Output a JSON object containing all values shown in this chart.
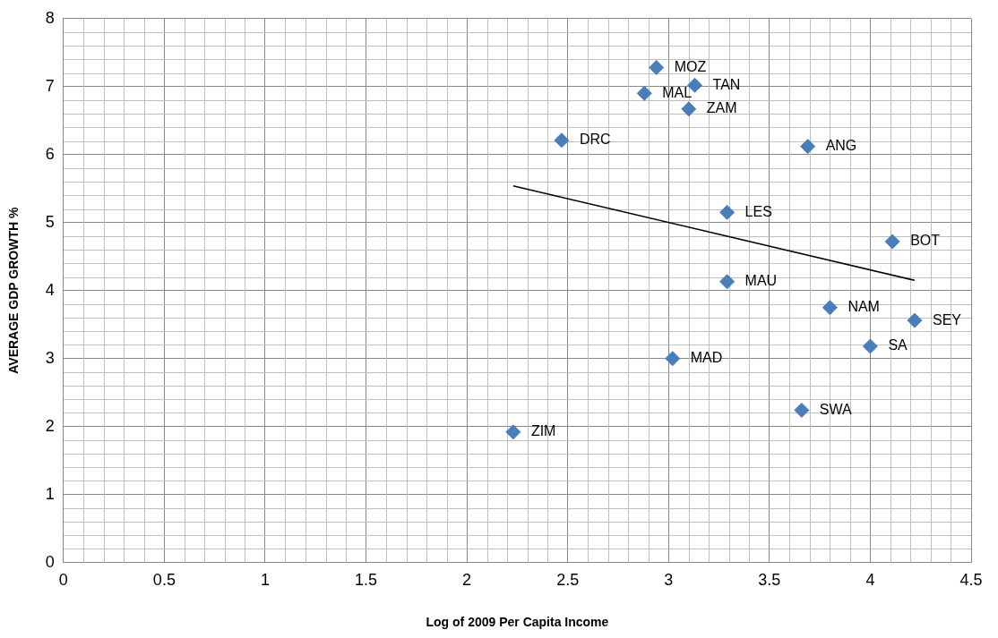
{
  "chart_data": {
    "type": "scatter",
    "xlabel": "Log of 2009 Per Capita Income",
    "ylabel": "AVERAGE GDP GROWTH %",
    "xlim": [
      0,
      4.5
    ],
    "xticks": [
      0,
      0.5,
      1,
      1.5,
      2,
      2.5,
      3,
      3.5,
      4,
      4.5
    ],
    "ylim": [
      0,
      8
    ],
    "yticks": [
      0,
      1,
      2,
      3,
      4,
      5,
      6,
      7,
      8
    ],
    "grid": true,
    "legend": false,
    "marker": "diamond",
    "series": [
      {
        "color": "#4a7ebb",
        "x": [
          2.94,
          3.13,
          2.88,
          3.1,
          2.47,
          3.69,
          3.29,
          4.11,
          3.29,
          3.8,
          4.22,
          4.0,
          3.02,
          3.66,
          2.23
        ],
        "values": [
          7.28,
          7.02,
          6.9,
          6.67,
          6.21,
          6.12,
          5.15,
          4.72,
          4.13,
          3.75,
          3.56,
          3.18,
          3.0,
          2.24,
          1.92
        ]
      },
      {
        "type": "line",
        "color": "#000000",
        "marker": "none",
        "x": [
          2.23,
          4.22
        ],
        "values": [
          5.54,
          4.15
        ]
      }
    ],
    "annotations": [
      {
        "text": "MOZ",
        "x": 2.94,
        "y": 7.28
      },
      {
        "text": "TAN",
        "x": 3.13,
        "y": 7.02
      },
      {
        "text": "MAL",
        "x": 2.88,
        "y": 6.9
      },
      {
        "text": "ZAM",
        "x": 3.1,
        "y": 6.67
      },
      {
        "text": "DRC",
        "x": 2.47,
        "y": 6.21
      },
      {
        "text": "ANG",
        "x": 3.69,
        "y": 6.12
      },
      {
        "text": "LES",
        "x": 3.29,
        "y": 5.15
      },
      {
        "text": "BOT",
        "x": 4.11,
        "y": 4.72
      },
      {
        "text": "MAU",
        "x": 3.29,
        "y": 4.13
      },
      {
        "text": "NAM",
        "x": 3.8,
        "y": 3.75
      },
      {
        "text": "SEY",
        "x": 4.22,
        "y": 3.56
      },
      {
        "text": "SA",
        "x": 4.0,
        "y": 3.18
      },
      {
        "text": "MAD",
        "x": 3.02,
        "y": 3.0
      },
      {
        "text": "SWA",
        "x": 3.66,
        "y": 2.24
      },
      {
        "text": "ZIM",
        "x": 2.23,
        "y": 1.92
      }
    ]
  }
}
